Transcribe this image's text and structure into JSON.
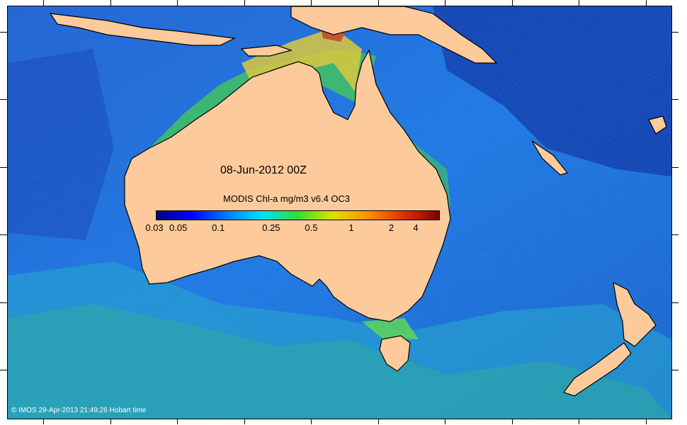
{
  "map": {
    "title": "08-Jun-2012 00Z",
    "colorbar_title": "MODIS Chl-a mg/m3 v6.4 OC3",
    "colorbar_ticks": [
      "0.03",
      "0.05",
      "0.1",
      "0.25",
      "0.5",
      "1",
      "2",
      "4"
    ],
    "colorbar_colors": [
      "#00007f",
      "#0000ff",
      "#0080ff",
      "#00e0ff",
      "#30e030",
      "#e0e000",
      "#ff9000",
      "#e03000",
      "#800000"
    ],
    "land_color": "#fdcb9b",
    "credit": "© IMOS 29-Apr-2013 21:49:26 Hobart time"
  }
}
